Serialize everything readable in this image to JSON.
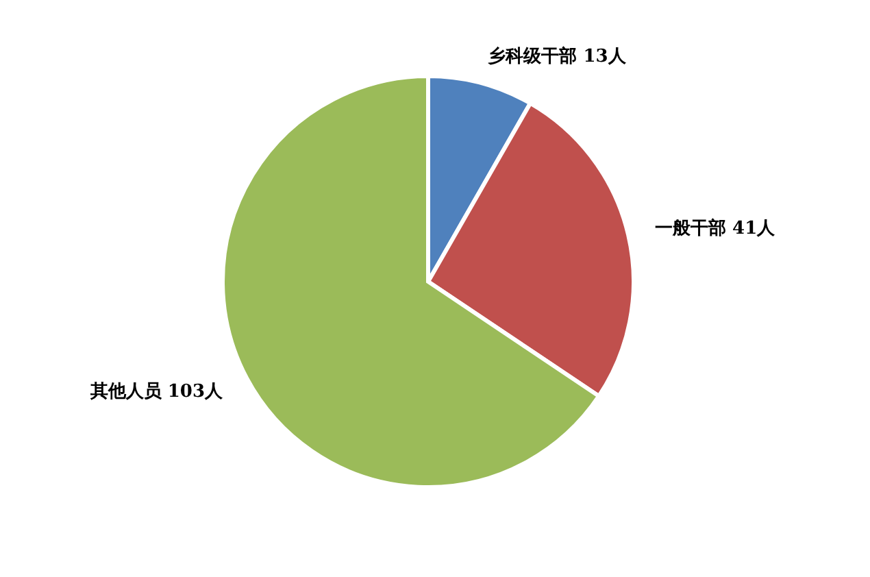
{
  "chart_data": {
    "type": "pie",
    "categories": [
      "乡科级干部",
      "一般干部",
      "其他人员"
    ],
    "values": [
      13,
      41,
      103
    ],
    "colors": [
      "#4f81bd",
      "#c0504d",
      "#9bbb59"
    ],
    "value_labels": [
      "13人",
      "41人",
      "103人"
    ],
    "legend": false
  }
}
